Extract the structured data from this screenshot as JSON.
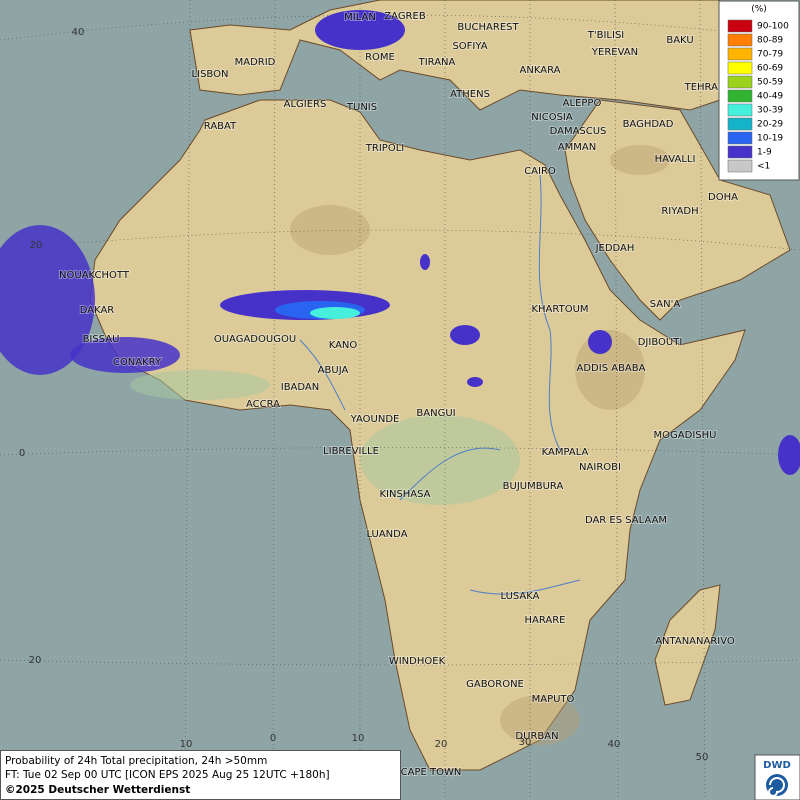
{
  "legend": {
    "title": "(%)",
    "items": [
      {
        "label": "90-100",
        "color": "#c8000f"
      },
      {
        "label": "80-89",
        "color": "#ff7f00"
      },
      {
        "label": "70-79",
        "color": "#ffb400"
      },
      {
        "label": "60-69",
        "color": "#ffff00"
      },
      {
        "label": "50-59",
        "color": "#9bd21e"
      },
      {
        "label": "40-49",
        "color": "#32b432"
      },
      {
        "label": "30-39",
        "color": "#46f0dc"
      },
      {
        "label": "20-29",
        "color": "#14b4c8"
      },
      {
        "label": "10-19",
        "color": "#2864f0"
      },
      {
        "label": "1-9",
        "color": "#4632c8"
      },
      {
        "label": "<1",
        "color": "#c8c8c8"
      }
    ]
  },
  "cities": [
    "MILAN",
    "ZAGREB",
    "BUCHAREST",
    "SOFIYA",
    "ROME",
    "TIRANA",
    "ANKARA",
    "T'BILISI",
    "YEREVAN",
    "BAKU",
    "TEHRAN",
    "MADRID",
    "LISBON",
    "ALGIERS",
    "TUNIS",
    "ATHENS",
    "ALEPPO",
    "NICOSIA",
    "DAMASCUS",
    "BAGHDAD",
    "AMMAN",
    "RABAT",
    "TRIPOLI",
    "CAIRO",
    "HAVALLI",
    "DOHA",
    "RIYADH",
    "JEDDAH",
    "NOUAKCHOTT",
    "DAKAR",
    "BISSAU",
    "SAN'A",
    "KHARTOUM",
    "OUAGADOUGOU",
    "KANO",
    "DJIBOUTI",
    "CONAKRY",
    "ABUJA",
    "ADDIS ABABA",
    "IBADAN",
    "ACCRA",
    "YAOUNDE",
    "BANGUI",
    "MOGADISHU",
    "LIBREVILLE",
    "KAMPALA",
    "NAIROBI",
    "KINSHASA",
    "BUJUMBURA",
    "DAR ES SALAAM",
    "LUANDA",
    "LUSAKA",
    "HARARE",
    "ANTANANARIVO",
    "WINDHOEK",
    "GABORONE",
    "MAPUTO",
    "DURBAN",
    "CAPE TOWN"
  ],
  "lat_labels": [
    "40",
    "20",
    "0",
    "20"
  ],
  "lon_labels": [
    "10",
    "0",
    "10",
    "20",
    "30",
    "40",
    "50"
  ],
  "caption": [
    "Probability of 24h Total precipitation, 24h >50mm",
    "FT: Tue 02 Sep 00 UTC [ICON EPS 2025 Aug 25 12UTC +180h]",
    "©2025 Deutscher Wetterdienst"
  ],
  "logo": "DWD"
}
